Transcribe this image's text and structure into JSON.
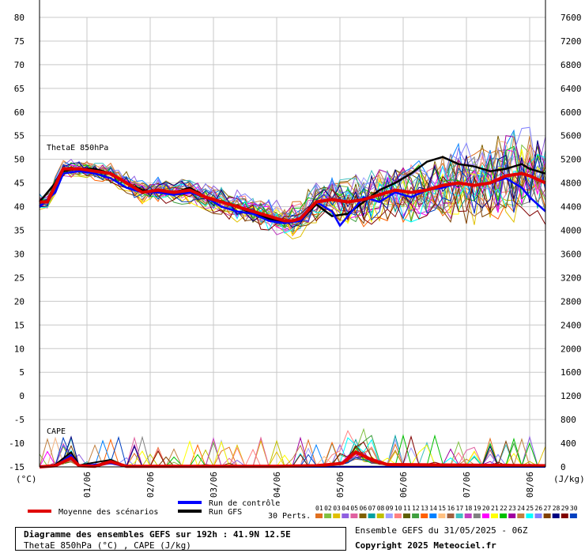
{
  "chart_data": {
    "type": "line",
    "series_labels": {
      "thetae": "ThetaE 850hPa",
      "cape": "CAPE"
    },
    "left_axis": {
      "unit": "(°C)",
      "ylim": [
        -15,
        80
      ],
      "ticks": [
        80,
        75,
        70,
        65,
        60,
        55,
        50,
        45,
        40,
        35,
        30,
        25,
        20,
        15,
        10,
        5,
        0,
        -5,
        -10,
        -15
      ]
    },
    "right_axis": {
      "unit": "(J/kg)",
      "ylim": [
        0,
        7600
      ],
      "ticks": [
        7600,
        7200,
        6800,
        6400,
        6000,
        5600,
        5200,
        4800,
        4400,
        4000,
        3600,
        3200,
        2800,
        2400,
        2000,
        1600,
        1200,
        800,
        400,
        0
      ]
    },
    "x_axis": {
      "hours": [
        0,
        192
      ],
      "date_ticks": [
        "01/06",
        "02/06",
        "03/06",
        "04/06",
        "05/06",
        "06/06",
        "07/06",
        "08/06"
      ],
      "date_tick_hours": [
        18,
        42,
        66,
        90,
        114,
        138,
        162,
        186
      ]
    },
    "thetae_mean": {
      "name": "Moyenne des scénarios",
      "color": "#e00000",
      "points": [
        [
          0,
          41
        ],
        [
          3,
          41
        ],
        [
          9,
          48
        ],
        [
          15,
          48
        ],
        [
          21,
          47.5
        ],
        [
          27,
          47
        ],
        [
          33,
          45
        ],
        [
          39,
          43
        ],
        [
          45,
          43.5
        ],
        [
          51,
          43
        ],
        [
          57,
          43.5
        ],
        [
          63,
          42
        ],
        [
          69,
          41
        ],
        [
          75,
          40
        ],
        [
          81,
          39
        ],
        [
          87,
          38
        ],
        [
          93,
          37
        ],
        [
          96,
          37
        ],
        [
          99,
          37.5
        ],
        [
          105,
          41
        ],
        [
          111,
          41.5
        ],
        [
          117,
          41
        ],
        [
          123,
          41.5
        ],
        [
          129,
          42.5
        ],
        [
          135,
          43.5
        ],
        [
          141,
          43
        ],
        [
          147,
          43.5
        ],
        [
          153,
          44.5
        ],
        [
          159,
          45
        ],
        [
          165,
          44.5
        ],
        [
          171,
          45
        ],
        [
          177,
          46.5
        ],
        [
          183,
          47
        ],
        [
          186,
          46.5
        ],
        [
          192,
          45
        ]
      ]
    },
    "thetae_control": {
      "name": "Run de contrôle",
      "color": "#0000ff",
      "points": [
        [
          0,
          40
        ],
        [
          6,
          43
        ],
        [
          9,
          47
        ],
        [
          15,
          47.5
        ],
        [
          21,
          47
        ],
        [
          27,
          46
        ],
        [
          33,
          44
        ],
        [
          39,
          43
        ],
        [
          45,
          43
        ],
        [
          51,
          42.5
        ],
        [
          57,
          43
        ],
        [
          63,
          42
        ],
        [
          69,
          40
        ],
        [
          75,
          39
        ],
        [
          81,
          38.5
        ],
        [
          87,
          37
        ],
        [
          93,
          36.5
        ],
        [
          99,
          37
        ],
        [
          105,
          41
        ],
        [
          111,
          39
        ],
        [
          114,
          36
        ],
        [
          117,
          38
        ],
        [
          123,
          42
        ],
        [
          129,
          41
        ],
        [
          135,
          43
        ],
        [
          141,
          42
        ],
        [
          147,
          43.5
        ],
        [
          153,
          44
        ],
        [
          159,
          45
        ],
        [
          165,
          44.5
        ],
        [
          171,
          45
        ],
        [
          177,
          46
        ],
        [
          183,
          44
        ],
        [
          186,
          42
        ],
        [
          192,
          39
        ]
      ]
    },
    "thetae_gfs": {
      "name": "Run GFS",
      "color": "#000000",
      "points": [
        [
          0,
          41
        ],
        [
          6,
          45
        ],
        [
          9,
          47.5
        ],
        [
          15,
          48
        ],
        [
          21,
          48
        ],
        [
          27,
          47
        ],
        [
          33,
          45
        ],
        [
          39,
          43.5
        ],
        [
          45,
          43
        ],
        [
          51,
          43
        ],
        [
          57,
          44
        ],
        [
          63,
          42
        ],
        [
          69,
          41
        ],
        [
          75,
          40
        ],
        [
          81,
          38.5
        ],
        [
          87,
          37.5
        ],
        [
          93,
          36.5
        ],
        [
          99,
          37
        ],
        [
          105,
          40.5
        ],
        [
          111,
          38
        ],
        [
          117,
          38.5
        ],
        [
          123,
          41
        ],
        [
          129,
          43.5
        ],
        [
          135,
          45
        ],
        [
          141,
          47
        ],
        [
          147,
          49.5
        ],
        [
          153,
          50.5
        ],
        [
          159,
          49
        ],
        [
          165,
          48.5
        ],
        [
          171,
          47.5
        ],
        [
          177,
          48
        ],
        [
          183,
          49
        ],
        [
          186,
          48
        ],
        [
          192,
          47
        ]
      ]
    },
    "cape_mean": {
      "name": "Moyenne des scénarios",
      "color": "#e00000",
      "points": [
        [
          0,
          0
        ],
        [
          6,
          20
        ],
        [
          12,
          150
        ],
        [
          15,
          20
        ],
        [
          21,
          10
        ],
        [
          27,
          90
        ],
        [
          33,
          10
        ],
        [
          60,
          10
        ],
        [
          90,
          10
        ],
        [
          105,
          20
        ],
        [
          115,
          60
        ],
        [
          120,
          250
        ],
        [
          126,
          120
        ],
        [
          132,
          40
        ],
        [
          192,
          20
        ]
      ]
    },
    "cape_control": {
      "name": "Run de contrôle",
      "color": "#0000ff",
      "points": [
        [
          0,
          0
        ],
        [
          6,
          20
        ],
        [
          12,
          200
        ],
        [
          15,
          20
        ],
        [
          27,
          60
        ],
        [
          33,
          0
        ],
        [
          192,
          0
        ]
      ]
    },
    "cape_gfs": {
      "name": "Run GFS",
      "color": "#000000",
      "points": [
        [
          0,
          0
        ],
        [
          6,
          40
        ],
        [
          12,
          250
        ],
        [
          15,
          30
        ],
        [
          27,
          120
        ],
        [
          33,
          10
        ],
        [
          192,
          0
        ]
      ]
    },
    "members_label": "30 Perts.",
    "member_numbers": [
      "01",
      "02",
      "03",
      "04",
      "05",
      "06",
      "07",
      "08",
      "09",
      "10",
      "11",
      "12",
      "13",
      "14",
      "15",
      "16",
      "17",
      "18",
      "19",
      "20",
      "21",
      "22",
      "23",
      "24",
      "25",
      "26",
      "27",
      "28",
      "29",
      "30"
    ],
    "member_colors": [
      "#e07020",
      "#80c040",
      "#e0c000",
      "#9060e0",
      "#e060a0",
      "#806000",
      "#00a0a0",
      "#c0c000",
      "#a0a0ff",
      "#ff8080",
      "#606000",
      "#40a040",
      "#ff6000",
      "#0080ff",
      "#ffc080",
      "#a06040",
      "#40c0c0",
      "#c040c0",
      "#808080",
      "#ff00ff",
      "#ffff00",
      "#00c000",
      "#a000a0",
      "#c08040",
      "#00ffff",
      "#8080ff",
      "#804000",
      "#000080",
      "#800000",
      "#0040c0"
    ],
    "info": {
      "title": "Diagramme des ensembles GEFS sur 192h : 41.9N 12.5E",
      "subtitle": "ThetaE 850hPa (°C) , CAPE (J/kg)",
      "run": "Ensemble GEFS du 31/05/2025 - 06Z",
      "copyright": "Copyright 2025 Meteociel.fr"
    }
  }
}
